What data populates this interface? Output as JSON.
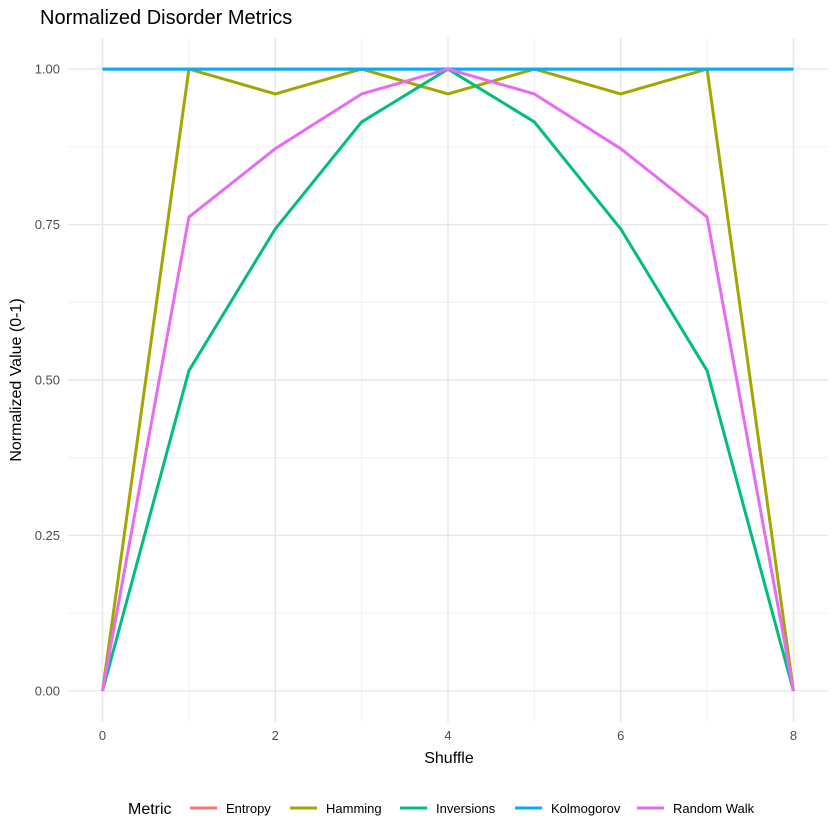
{
  "chart_data": {
    "type": "line",
    "title": "Normalized Disorder Metrics",
    "xlabel": "Shuffle",
    "ylabel": "Normalized Value (0-1)",
    "xlim": [
      0,
      8
    ],
    "ylim": [
      0,
      1
    ],
    "x_ticks": [
      "0",
      "2",
      "4",
      "6",
      "8"
    ],
    "y_ticks": [
      "0.00",
      "0.25",
      "0.50",
      "0.75",
      "1.00"
    ],
    "grid": true,
    "legend_position": "bottom",
    "legend_title": "Metric",
    "x": [
      0,
      1,
      2,
      3,
      4,
      5,
      6,
      7,
      8
    ],
    "series": [
      {
        "name": "Entropy",
        "color": "#F8766D",
        "values": [
          1,
          1,
          1,
          1,
          1,
          1,
          1,
          1,
          1
        ]
      },
      {
        "name": "Hamming",
        "color": "#A3A500",
        "values": [
          0,
          1,
          0.96,
          1,
          0.96,
          1,
          0.96,
          1,
          0
        ]
      },
      {
        "name": "Inversions",
        "color": "#00BF7D",
        "values": [
          0,
          0.515,
          0.743,
          0.915,
          1,
          0.915,
          0.743,
          0.515,
          0
        ]
      },
      {
        "name": "Kolmogorov",
        "color": "#00B0F6",
        "values": [
          1,
          1,
          1,
          1,
          1,
          1,
          1,
          1,
          1
        ]
      },
      {
        "name": "Random Walk",
        "color": "#E76BF3",
        "values": [
          0,
          0.762,
          0.872,
          0.96,
          1,
          0.96,
          0.872,
          0.762,
          0
        ]
      }
    ],
    "draw_order": [
      "Entropy",
      "Hamming",
      "Inversions",
      "Kolmogorov",
      "Random Walk"
    ]
  }
}
